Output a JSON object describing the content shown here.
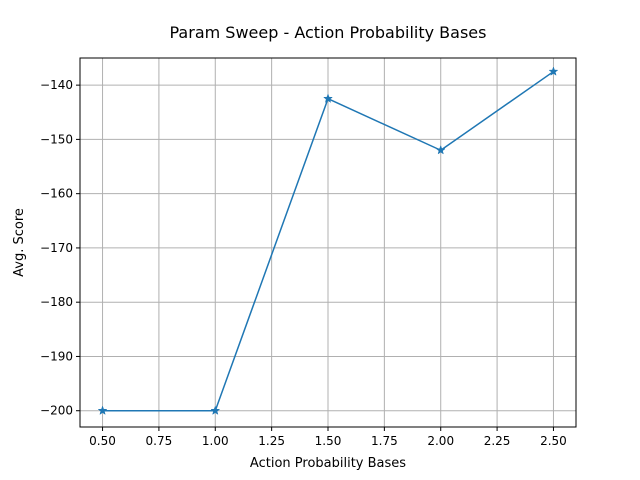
{
  "chart_data": {
    "type": "line",
    "title": "Param Sweep - Action Probability Bases",
    "xlabel": "Action Probability Bases",
    "ylabel": "Avg. Score",
    "xlim": [
      0.4,
      2.6
    ],
    "ylim": [
      -203,
      -135
    ],
    "xticks": [
      0.5,
      0.75,
      1.0,
      1.25,
      1.5,
      1.75,
      2.0,
      2.25,
      2.5
    ],
    "xtick_labels": [
      "0.50",
      "0.75",
      "1.00",
      "1.25",
      "1.50",
      "1.75",
      "2.00",
      "2.25",
      "2.50"
    ],
    "yticks": [
      -200,
      -190,
      -180,
      -170,
      -160,
      -150,
      -140
    ],
    "ytick_labels": [
      "−200",
      "−190",
      "−180",
      "−170",
      "−160",
      "−150",
      "−140"
    ],
    "grid": true,
    "marker": "star",
    "series": [
      {
        "x": [
          0.5,
          1.0,
          1.5,
          2.0,
          2.5
        ],
        "y": [
          -200,
          -200,
          -142.5,
          -152,
          -137.5
        ],
        "color": "#1f77b4"
      }
    ]
  }
}
